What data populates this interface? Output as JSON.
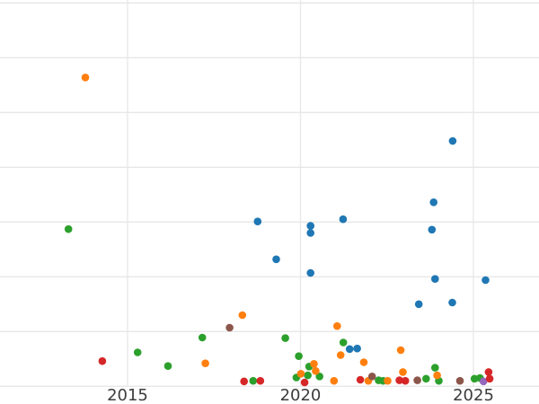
{
  "chart_data": {
    "type": "scatter",
    "title": "",
    "xlabel": "",
    "ylabel": "",
    "grid": true,
    "legend_position": "none",
    "background_color": "#ffffff",
    "gridline_color": "#e7e7e7",
    "tick_label_color": "#3c3c3c",
    "x_ticks": [
      2015,
      2020,
      2025
    ],
    "x_tick_labels": [
      "2015",
      "2020",
      "2025"
    ],
    "y_ticks": [
      0,
      1,
      2,
      3,
      4,
      5,
      6,
      7
    ],
    "y_tick_labels": [],
    "x_range": [
      2011.312,
      2026.896
    ],
    "y_range": [
      -0.323,
      7.054
    ],
    "series": [
      {
        "name": "green-series",
        "color": "#2ca02c",
        "points": [
          [
            2013.29,
            2.87
          ],
          [
            2015.29,
            0.62
          ],
          [
            2016.17,
            0.37
          ],
          [
            2017.16,
            0.89
          ],
          [
            2018.63,
            0.1
          ],
          [
            2019.56,
            0.88
          ],
          [
            2019.95,
            0.55
          ],
          [
            2020.25,
            0.36
          ],
          [
            2019.88,
            0.16
          ],
          [
            2020.21,
            0.2
          ],
          [
            2020.55,
            0.18
          ],
          [
            2021.24,
            0.8
          ],
          [
            2022.26,
            0.11
          ],
          [
            2022.39,
            0.1
          ],
          [
            2023.63,
            0.14
          ],
          [
            2023.89,
            0.34
          ],
          [
            2024.0,
            0.1
          ],
          [
            2025.03,
            0.14
          ],
          [
            2025.19,
            0.15
          ]
        ]
      },
      {
        "name": "orange-series",
        "color": "#ff7f0e",
        "points": [
          [
            2013.78,
            5.64
          ],
          [
            2018.32,
            1.3
          ],
          [
            2021.06,
            1.1
          ],
          [
            2017.25,
            0.42
          ],
          [
            2020.39,
            0.41
          ],
          [
            2020.44,
            0.28
          ],
          [
            2020.01,
            0.23
          ],
          [
            2021.16,
            0.57
          ],
          [
            2021.83,
            0.44
          ],
          [
            2020.97,
            0.1
          ],
          [
            2021.96,
            0.1
          ],
          [
            2022.52,
            0.1
          ],
          [
            2022.9,
            0.66
          ],
          [
            2022.96,
            0.26
          ],
          [
            2023.95,
            0.2
          ]
        ]
      },
      {
        "name": "blue-series",
        "color": "#1f77b4",
        "points": [
          [
            2018.76,
            3.01
          ],
          [
            2020.29,
            2.93
          ],
          [
            2020.29,
            2.8
          ],
          [
            2021.23,
            3.05
          ],
          [
            2019.3,
            2.32
          ],
          [
            2020.29,
            2.07
          ],
          [
            2024.4,
            4.48
          ],
          [
            2023.85,
            3.36
          ],
          [
            2023.8,
            2.86
          ],
          [
            2023.89,
            1.96
          ],
          [
            2025.35,
            1.94
          ],
          [
            2023.42,
            1.5
          ],
          [
            2024.39,
            1.53
          ],
          [
            2021.42,
            0.68
          ],
          [
            2021.64,
            0.69
          ]
        ]
      },
      {
        "name": "purple-series",
        "color": "#9467bd",
        "points": [
          [
            2025.29,
            0.09
          ]
        ]
      },
      {
        "name": "red-series",
        "color": "#d62728",
        "points": [
          [
            2014.27,
            0.46
          ],
          [
            2018.37,
            0.09
          ],
          [
            2018.84,
            0.1
          ],
          [
            2020.12,
            0.07
          ],
          [
            2021.73,
            0.12
          ],
          [
            2022.86,
            0.11
          ],
          [
            2023.03,
            0.1
          ],
          [
            2025.44,
            0.26
          ],
          [
            2025.47,
            0.14
          ]
        ]
      },
      {
        "name": "brown-series",
        "color": "#8c564b",
        "points": [
          [
            2017.95,
            1.07
          ],
          [
            2022.07,
            0.18
          ],
          [
            2023.38,
            0.11
          ],
          [
            2024.61,
            0.1
          ]
        ]
      }
    ]
  }
}
